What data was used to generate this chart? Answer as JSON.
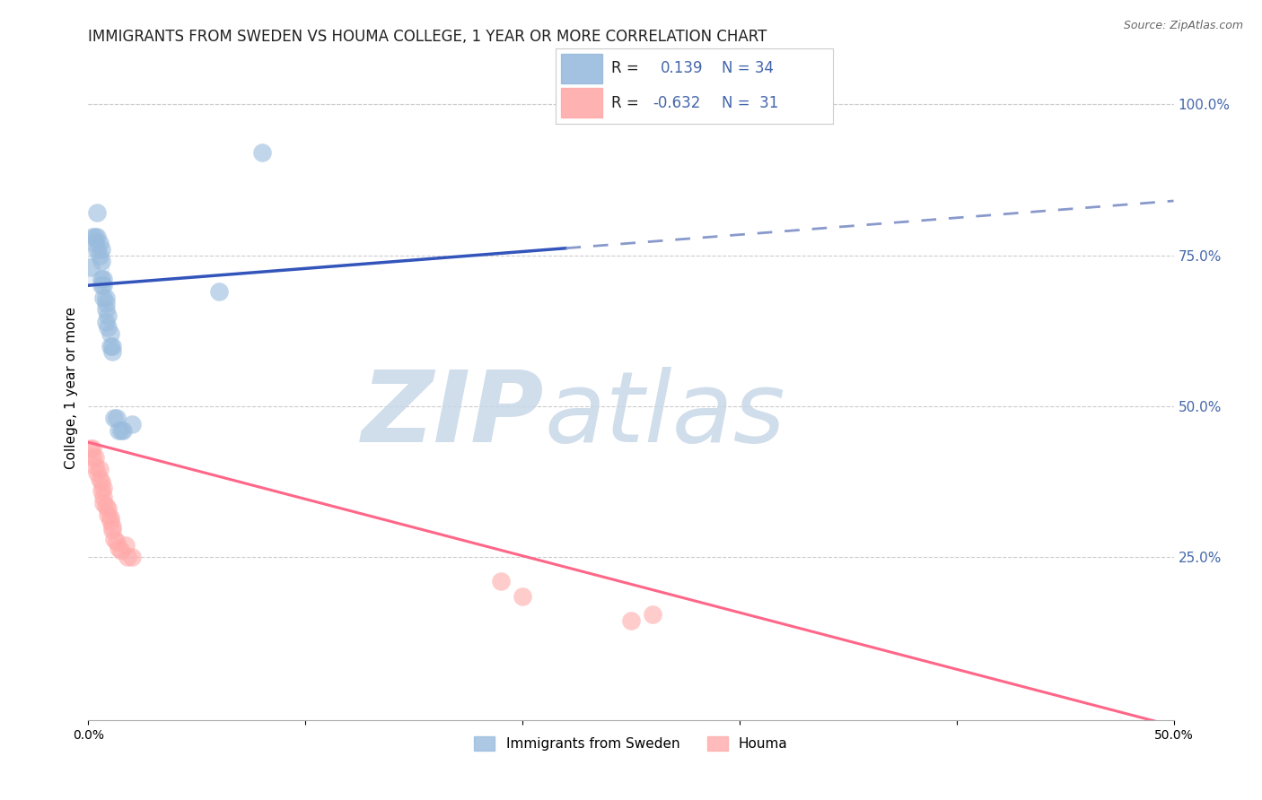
{
  "title": "IMMIGRANTS FROM SWEDEN VS HOUMA COLLEGE, 1 YEAR OR MORE CORRELATION CHART",
  "source_text": "Source: ZipAtlas.com",
  "ylabel": "College, 1 year or more",
  "right_ytick_labels": [
    "100.0%",
    "75.0%",
    "50.0%",
    "25.0%"
  ],
  "right_ytick_values": [
    1.0,
    0.75,
    0.5,
    0.25
  ],
  "xlim": [
    0,
    0.5
  ],
  "ylim": [
    -0.02,
    1.08
  ],
  "xtick_labels": [
    "0.0%",
    "",
    "",
    "",
    "",
    "50.0%"
  ],
  "xtick_values": [
    0.0,
    0.1,
    0.2,
    0.3,
    0.4,
    0.5
  ],
  "blue_r": 0.139,
  "blue_n": 34,
  "pink_r": -0.632,
  "pink_n": 31,
  "blue_scatter_x": [
    0.001,
    0.002,
    0.003,
    0.003,
    0.004,
    0.004,
    0.004,
    0.005,
    0.005,
    0.006,
    0.006,
    0.006,
    0.006,
    0.007,
    0.007,
    0.007,
    0.008,
    0.008,
    0.008,
    0.008,
    0.009,
    0.009,
    0.01,
    0.01,
    0.011,
    0.011,
    0.012,
    0.013,
    0.014,
    0.015,
    0.016,
    0.02,
    0.06,
    0.08
  ],
  "blue_scatter_y": [
    0.73,
    0.78,
    0.78,
    0.77,
    0.82,
    0.78,
    0.76,
    0.77,
    0.75,
    0.76,
    0.74,
    0.71,
    0.7,
    0.68,
    0.71,
    0.7,
    0.68,
    0.66,
    0.67,
    0.64,
    0.65,
    0.63,
    0.62,
    0.6,
    0.59,
    0.6,
    0.48,
    0.48,
    0.46,
    0.46,
    0.46,
    0.47,
    0.69,
    0.92
  ],
  "pink_scatter_x": [
    0.001,
    0.002,
    0.002,
    0.003,
    0.003,
    0.004,
    0.005,
    0.005,
    0.006,
    0.006,
    0.007,
    0.007,
    0.007,
    0.008,
    0.009,
    0.009,
    0.01,
    0.01,
    0.011,
    0.011,
    0.012,
    0.013,
    0.014,
    0.015,
    0.017,
    0.018,
    0.02,
    0.19,
    0.2,
    0.25,
    0.26
  ],
  "pink_scatter_y": [
    0.43,
    0.43,
    0.415,
    0.415,
    0.4,
    0.39,
    0.395,
    0.38,
    0.375,
    0.36,
    0.365,
    0.35,
    0.34,
    0.335,
    0.33,
    0.32,
    0.315,
    0.31,
    0.3,
    0.295,
    0.28,
    0.275,
    0.265,
    0.26,
    0.27,
    0.25,
    0.25,
    0.21,
    0.185,
    0.145,
    0.155
  ],
  "blue_line_color": "#3355BB",
  "pink_line_color": "#FF6688",
  "blue_dash_color": "#8899CC",
  "blue_dot_color": "#99BBDD",
  "pink_dot_color": "#FFAAAA",
  "watermark_zip": "ZIP",
  "watermark_atlas": "atlas",
  "watermark_color_zip": "#C8D8E8",
  "watermark_color_atlas": "#C8D8E8",
  "legend_label_blue": "Immigrants from Sweden",
  "legend_label_pink": "Houma",
  "background_color": "#FFFFFF",
  "grid_color": "#CCCCCC",
  "right_tick_color": "#4466AA",
  "title_fontsize": 12,
  "source_fontsize": 9,
  "tick_fontsize": 10,
  "ylabel_fontsize": 11
}
